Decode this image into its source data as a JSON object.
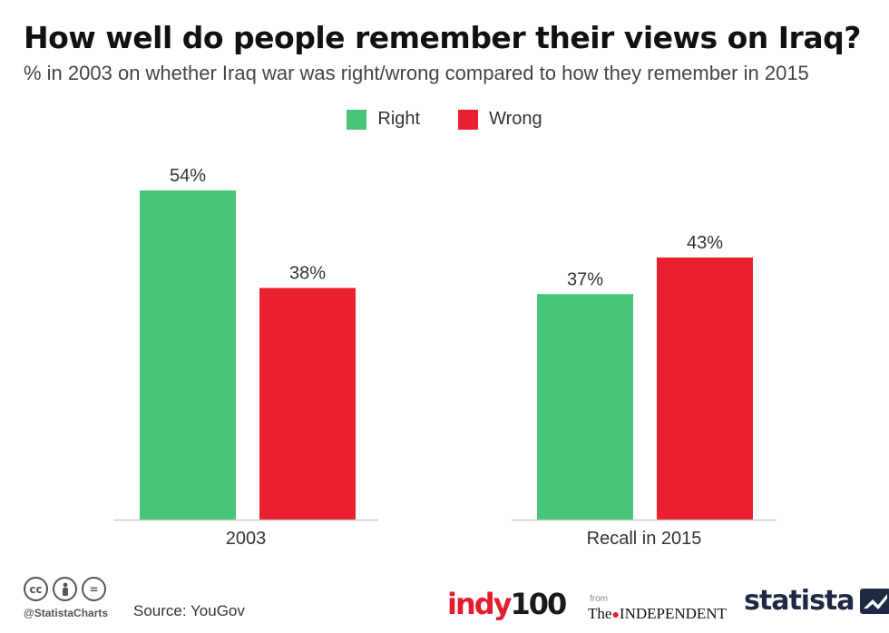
{
  "header": {
    "title": "How well do people remember their views on Iraq?",
    "subtitle": "% in 2003 on whether Iraq war was right/wrong compared to how they remember in 2015"
  },
  "colors": {
    "right": "#47c477",
    "wrong": "#e8202f",
    "axis": "#cccccc"
  },
  "chart_data": {
    "type": "bar",
    "title": "How well do people remember their views on Iraq?",
    "subtitle": "% in 2003 on whether Iraq war was right/wrong compared to how they remember in 2015",
    "categories": [
      "2003",
      "Recall in 2015"
    ],
    "series": [
      {
        "name": "Right",
        "values": [
          54,
          37
        ],
        "labels": [
          "54%",
          "37%"
        ]
      },
      {
        "name": "Wrong",
        "values": [
          38,
          43
        ],
        "labels": [
          "38%",
          "43%"
        ]
      }
    ],
    "ylim": [
      0,
      100
    ],
    "xlabel": "",
    "ylabel": "",
    "grid": false,
    "legend": "top-center"
  },
  "footer": {
    "handle": "@StatistaCharts",
    "source": "Source: YouGov",
    "indy_part1": "indy",
    "indy_part2": "100",
    "from_label": "from",
    "independent_prefix": "The",
    "independent_name": "INDEPENDENT",
    "statista": "statista",
    "cc_icons": [
      "cc-icon",
      "by-person-icon",
      "nd-equals-icon"
    ],
    "cc_text": "cc",
    "nd_text": "="
  }
}
